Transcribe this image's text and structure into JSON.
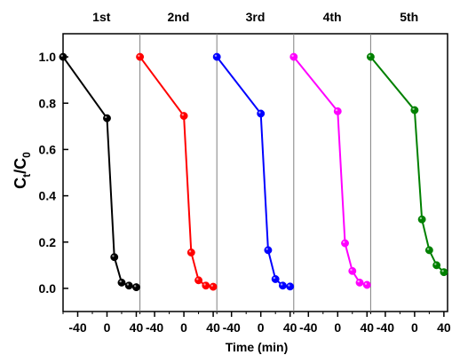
{
  "chart_data": {
    "type": "line",
    "xlabel": "Time (min)",
    "ylabel_main": "C",
    "ylabel_sub1": "t",
    "ylabel_mid": "/C",
    "ylabel_sub2": "0",
    "ylim": [
      -0.1,
      1.1
    ],
    "yticks": [
      0.0,
      0.2,
      0.4,
      0.6,
      0.8,
      1.0
    ],
    "ytick_labels": [
      "0.0",
      "0.2",
      "0.4",
      "0.6",
      "0.8",
      "1.0"
    ],
    "xticks": [
      -40,
      0,
      40
    ],
    "xtick_labels": [
      "-40",
      "0",
      "40"
    ],
    "panel_xlim": [
      -60,
      45
    ],
    "grid": false,
    "panels": [
      {
        "name": "1st",
        "color": "#000000",
        "x": [
          -60,
          0,
          10,
          20,
          30,
          40
        ],
        "y": [
          1.0,
          0.735,
          0.135,
          0.025,
          0.012,
          0.005
        ]
      },
      {
        "name": "2nd",
        "color": "#ff0000",
        "x": [
          -60,
          0,
          10,
          20,
          30,
          40
        ],
        "y": [
          1.0,
          0.745,
          0.155,
          0.035,
          0.012,
          0.007
        ]
      },
      {
        "name": "3rd",
        "color": "#0000ff",
        "x": [
          -60,
          0,
          10,
          20,
          30,
          40
        ],
        "y": [
          1.0,
          0.755,
          0.165,
          0.04,
          0.012,
          0.008
        ]
      },
      {
        "name": "4th",
        "color": "#ff00ff",
        "x": [
          -60,
          0,
          10,
          20,
          30,
          40
        ],
        "y": [
          1.0,
          0.765,
          0.195,
          0.075,
          0.025,
          0.015
        ]
      },
      {
        "name": "5th",
        "color": "#008000",
        "x": [
          -60,
          0,
          10,
          20,
          30,
          40
        ],
        "y": [
          1.0,
          0.77,
          0.298,
          0.165,
          0.1,
          0.07
        ]
      }
    ]
  }
}
